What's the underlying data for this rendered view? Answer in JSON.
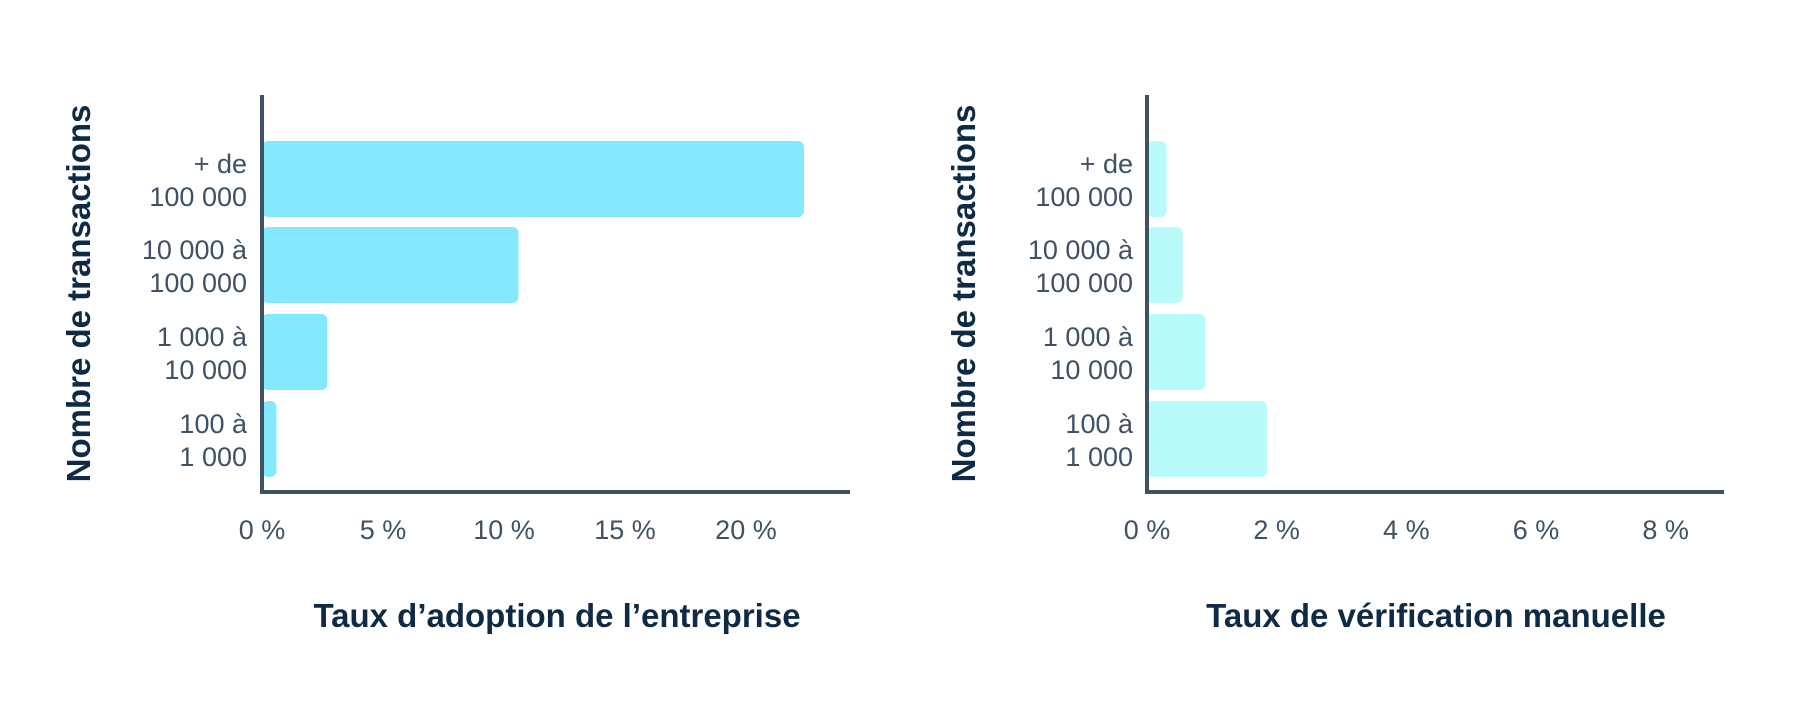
{
  "chart_data": [
    {
      "type": "bar",
      "orientation": "horizontal",
      "categories": [
        [
          "+ de",
          "100 000"
        ],
        [
          "10 000 à",
          "100 000"
        ],
        [
          "1 000 à",
          "10 000"
        ],
        [
          "100 à",
          "1 000"
        ]
      ],
      "values": [
        22.4,
        10.6,
        2.7,
        0.6
      ],
      "x_ticks": [
        0,
        5,
        10,
        15,
        20
      ],
      "x_tick_labels": [
        "0 %",
        "5 %",
        "10 %",
        "15 %",
        "20 %"
      ],
      "xlim": [
        0,
        24.3
      ],
      "xlabel": "Taux d’adoption de l’entreprise",
      "ylabel": "Nombre de transactions",
      "color": "#84e9fd",
      "grid": false
    },
    {
      "type": "bar",
      "orientation": "horizontal",
      "categories": [
        [
          "+ de",
          "100 000"
        ],
        [
          "10 000 à",
          "100 000"
        ],
        [
          "1 000 à",
          "10 000"
        ],
        [
          "100 à",
          "1 000"
        ]
      ],
      "values": [
        0.3,
        0.55,
        0.9,
        1.85
      ],
      "x_ticks": [
        0,
        2,
        4,
        6,
        8
      ],
      "x_tick_labels": [
        "0 %",
        "2 %",
        "4 %",
        "6 %",
        "8 %"
      ],
      "xlim": [
        0,
        8.9
      ],
      "xlabel": "Taux de vérification manuelle",
      "ylabel": "Nombre de transactions",
      "color": "#b9fbfb",
      "grid": false
    }
  ]
}
